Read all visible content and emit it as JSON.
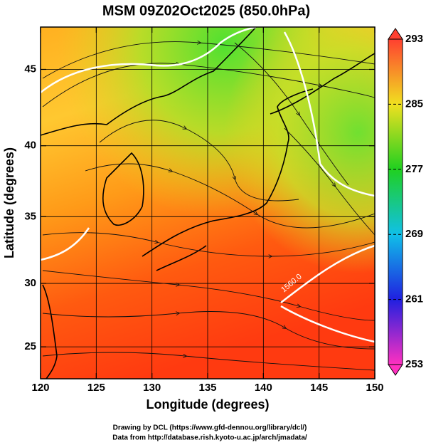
{
  "title": "MSM 09Z02Oct2025 (850.0hPa)",
  "x_axis": {
    "label": "Longitude (degrees)",
    "lim": [
      120,
      150
    ],
    "ticks": [
      120,
      125,
      130,
      135,
      140,
      145,
      150
    ]
  },
  "y_axis": {
    "label": "Latitude  (degrees)",
    "lim": [
      22.4,
      47.6
    ],
    "ticks": [
      25,
      30,
      35,
      40,
      45
    ]
  },
  "colorbar": {
    "lim": [
      253,
      293
    ],
    "ticks": [
      253,
      261,
      269,
      277,
      285,
      293
    ]
  },
  "contour_label": "1560.0",
  "footer": [
    "Drawing by DCL (https://www.gfd-dennou.org/library/dcl/)",
    "Data from http://database.rish.kyoto-u.ac.jp/arch/jmadata/"
  ]
}
